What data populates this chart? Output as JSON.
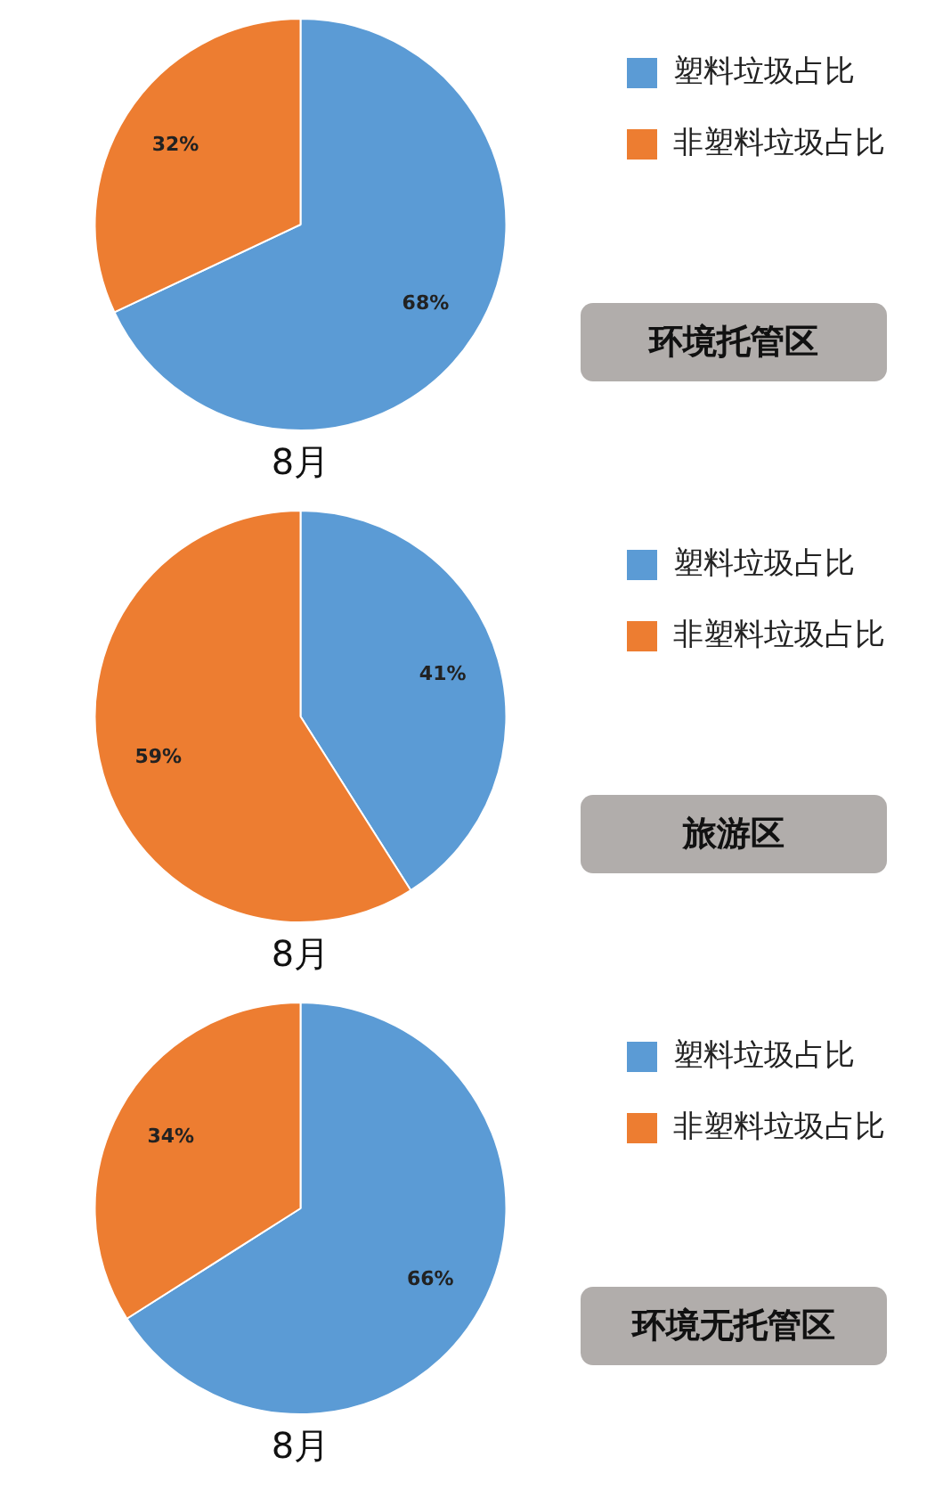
{
  "chart_data": [
    {
      "type": "pie",
      "title": "环境托管区",
      "xlabel": "8月",
      "categories": [
        "塑料垃圾占比",
        "非塑料垃圾占比"
      ],
      "values": [
        68,
        32
      ],
      "colors": [
        "#5b9bd5",
        "#ed7d31"
      ],
      "value_labels": [
        "68%",
        "32%"
      ],
      "legend": "right"
    },
    {
      "type": "pie",
      "title": "旅游区",
      "xlabel": "8月",
      "categories": [
        "塑料垃圾占比",
        "非塑料垃圾占比"
      ],
      "values": [
        41,
        59
      ],
      "colors": [
        "#5b9bd5",
        "#ed7d31"
      ],
      "value_labels": [
        "41%",
        "59%"
      ],
      "legend": "right"
    },
    {
      "type": "pie",
      "title": "环境无托管区",
      "xlabel": "8月",
      "categories": [
        "塑料垃圾占比",
        "非塑料垃圾占比"
      ],
      "values": [
        66,
        34
      ],
      "colors": [
        "#5b9bd5",
        "#ed7d31"
      ],
      "value_labels": [
        "66%",
        "34%"
      ],
      "legend": "right"
    }
  ]
}
